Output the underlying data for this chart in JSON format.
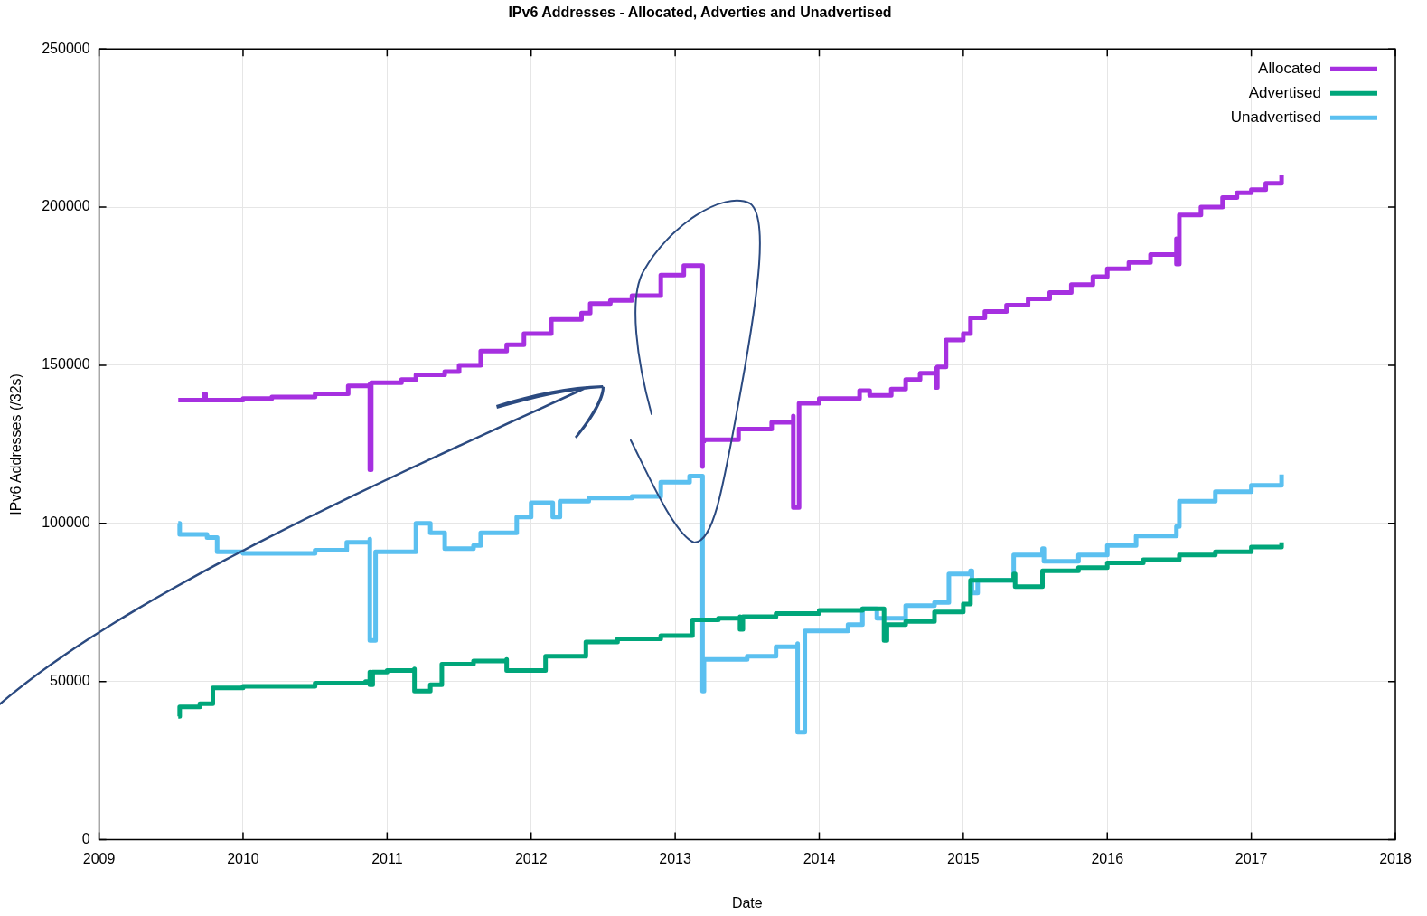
{
  "chart_data": {
    "type": "step",
    "title": "IPv6 Addresses - Allocated, Adverties and Unadvertised",
    "xlabel": "Date",
    "ylabel": "IPv6 Addresses (/32s)",
    "xlim": [
      2009,
      2018
    ],
    "xticks": [
      2009,
      2010,
      2011,
      2012,
      2013,
      2014,
      2015,
      2016,
      2017,
      2018
    ],
    "ylim": [
      0,
      250000
    ],
    "yticks": [
      0,
      50000,
      100000,
      150000,
      200000,
      250000
    ],
    "grid": true,
    "legend": "top right",
    "marker": "none",
    "line_style": "solid",
    "series": [
      {
        "name": "Allocated",
        "color": "#a630e0",
        "x": [
          2009.55,
          2009.73,
          2009.73,
          2009.74,
          2010.0,
          2010.2,
          2010.5,
          2010.73,
          2010.88,
          2010.88,
          2010.89,
          2011.1,
          2011.2,
          2011.4,
          2011.5,
          2011.65,
          2011.83,
          2011.95,
          2012.14,
          2012.35,
          2012.41,
          2012.55,
          2012.7,
          2012.9,
          2013.06,
          2013.19,
          2013.19,
          2013.2,
          2013.44,
          2013.67,
          2013.82,
          2013.82,
          2013.86,
          2014.0,
          2014.28,
          2014.35,
          2014.5,
          2014.6,
          2014.7,
          2014.81,
          2014.81,
          2014.82,
          2014.88,
          2015.0,
          2015.05,
          2015.15,
          2015.3,
          2015.45,
          2015.6,
          2015.75,
          2015.9,
          2016.0,
          2016.15,
          2016.3,
          2016.48,
          2016.48,
          2016.5,
          2016.65,
          2016.8,
          2016.9,
          2017.0,
          2017.1,
          2017.21
        ],
        "values": [
          139000,
          139000,
          141000,
          139000,
          139500,
          140000,
          141000,
          143500,
          144000,
          117000,
          144500,
          145500,
          147000,
          148000,
          150000,
          154500,
          156500,
          160000,
          164500,
          166500,
          169500,
          170500,
          172000,
          178500,
          181500,
          118000,
          126000,
          126500,
          129800,
          132000,
          134000,
          105000,
          138000,
          139500,
          142000,
          140500,
          142500,
          145500,
          147500,
          149000,
          143000,
          149500,
          158000,
          160000,
          165000,
          167000,
          169000,
          171000,
          173000,
          175500,
          178000,
          180500,
          182500,
          185000,
          190000,
          182000,
          197500,
          200000,
          203000,
          204500,
          205500,
          207500,
          210000
        ]
      },
      {
        "name": "Advertised",
        "color": "#00a67a",
        "x": [
          2009.55,
          2009.56,
          2009.7,
          2009.79,
          2010.0,
          2010.5,
          2010.85,
          2010.88,
          2010.88,
          2010.9,
          2011.0,
          2011.19,
          2011.19,
          2011.3,
          2011.38,
          2011.6,
          2011.83,
          2011.83,
          2012.1,
          2012.38,
          2012.6,
          2012.9,
          2013.12,
          2013.3,
          2013.45,
          2013.45,
          2013.47,
          2013.7,
          2014.0,
          2014.3,
          2014.45,
          2014.45,
          2014.47,
          2014.6,
          2014.8,
          2015.0,
          2015.05,
          2015.35,
          2015.36,
          2015.55,
          2015.8,
          2016.0,
          2016.25,
          2016.5,
          2016.75,
          2017.0,
          2017.21
        ],
        "values": [
          39000,
          42000,
          43000,
          48000,
          48500,
          49500,
          50000,
          53000,
          49000,
          53000,
          53500,
          54000,
          47000,
          49000,
          55500,
          56500,
          57000,
          53500,
          58000,
          62500,
          63500,
          64500,
          69500,
          70000,
          70500,
          66500,
          70500,
          71500,
          72500,
          73000,
          68000,
          63000,
          68000,
          69000,
          72000,
          74500,
          82000,
          84000,
          80000,
          85000,
          86000,
          87500,
          88500,
          90000,
          91000,
          92500,
          94000
        ]
      },
      {
        "name": "Unadvertised",
        "color": "#5bc0f0",
        "x": [
          2009.55,
          2009.56,
          2009.75,
          2009.82,
          2010.0,
          2010.5,
          2010.72,
          2010.88,
          2010.88,
          2010.92,
          2011.2,
          2011.2,
          2011.3,
          2011.4,
          2011.6,
          2011.65,
          2011.9,
          2012.0,
          2012.15,
          2012.2,
          2012.4,
          2012.7,
          2012.9,
          2013.1,
          2013.19,
          2013.19,
          2013.2,
          2013.5,
          2013.7,
          2013.85,
          2013.85,
          2013.9,
          2014.2,
          2014.3,
          2014.4,
          2014.6,
          2014.8,
          2014.9,
          2015.05,
          2015.06,
          2015.1,
          2015.35,
          2015.55,
          2015.56,
          2015.8,
          2016.0,
          2016.2,
          2016.48,
          2016.5,
          2016.75,
          2017.0,
          2017.21
        ],
        "values": [
          100000,
          96500,
          95500,
          91000,
          90500,
          91500,
          94000,
          95000,
          63000,
          91000,
          92500,
          100000,
          97000,
          92000,
          93000,
          97000,
          102000,
          106500,
          102000,
          107000,
          108000,
          108500,
          113000,
          115000,
          112000,
          47000,
          57000,
          58000,
          61000,
          62000,
          34000,
          66000,
          68000,
          73000,
          70000,
          74000,
          75000,
          84000,
          85000,
          78000,
          82000,
          90000,
          92000,
          88000,
          90000,
          93000,
          96000,
          99000,
          107000,
          110000,
          112000,
          115500
        ]
      }
    ]
  }
}
